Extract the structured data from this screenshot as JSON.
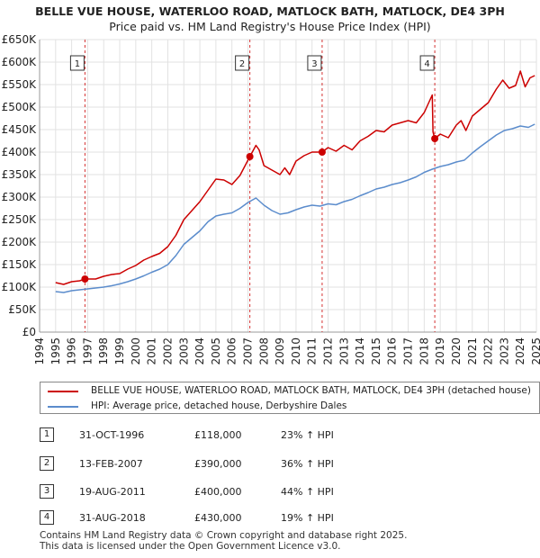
{
  "title": "BELLE VUE HOUSE, WATERLOO ROAD, MATLOCK BATH, MATLOCK, DE4 3PH",
  "subtitle": "Price paid vs. HM Land Registry's House Price Index (HPI)",
  "legend": {
    "property": "BELLE VUE HOUSE, WATERLOO ROAD, MATLOCK BATH, MATLOCK, DE4 3PH (detached house)",
    "hpi": "HPI: Average price, detached house, Derbyshire Dales"
  },
  "transactions": [
    {
      "num": "1",
      "date": "31-OCT-1996",
      "price": "£118,000",
      "hpi": "23% ↑ HPI"
    },
    {
      "num": "2",
      "date": "13-FEB-2007",
      "price": "£390,000",
      "hpi": "36% ↑ HPI"
    },
    {
      "num": "3",
      "date": "19-AUG-2011",
      "price": "£400,000",
      "hpi": "44% ↑ HPI"
    },
    {
      "num": "4",
      "date": "31-AUG-2018",
      "price": "£430,000",
      "hpi": "19% ↑ HPI"
    }
  ],
  "footer": {
    "line1": "Contains HM Land Registry data © Crown copyright and database right 2025.",
    "line2": "This data is licensed under the Open Government Licence v3.0."
  },
  "colors": {
    "property": "#cc0000",
    "hpi": "#5b8ccc",
    "grid": "#e2e2e2",
    "plot_bg": "#ffffff"
  },
  "chart_data": {
    "type": "line",
    "title": "BELLE VUE HOUSE, WATERLOO ROAD, MATLOCK BATH, MATLOCK, DE4 3PH",
    "subtitle": "Price paid vs. HM Land Registry's House Price Index (HPI)",
    "xlabel": "",
    "ylabel": "",
    "xlim": [
      1994,
      2025
    ],
    "ylim": [
      0,
      650000
    ],
    "x_ticks": [
      1994,
      1995,
      1996,
      1997,
      1998,
      1999,
      2000,
      2001,
      2002,
      2003,
      2004,
      2005,
      2006,
      2007,
      2008,
      2009,
      2010,
      2011,
      2012,
      2013,
      2014,
      2015,
      2016,
      2017,
      2018,
      2019,
      2020,
      2021,
      2022,
      2023,
      2024,
      2025
    ],
    "y_ticks": [
      0,
      50000,
      100000,
      150000,
      200000,
      250000,
      300000,
      350000,
      400000,
      450000,
      500000,
      550000,
      600000,
      650000
    ],
    "y_tick_labels": [
      "£0",
      "£50K",
      "£100K",
      "£150K",
      "£200K",
      "£250K",
      "£300K",
      "£350K",
      "£400K",
      "£450K",
      "£500K",
      "£550K",
      "£600K",
      "£650K"
    ],
    "grid": true,
    "legend_position": "below",
    "series": [
      {
        "name": "BELLE VUE HOUSE, WATERLOO ROAD, MATLOCK BATH, MATLOCK, DE4 3PH (detached house)",
        "color": "#cc0000",
        "x": [
          1995.0,
          1995.5,
          1996.0,
          1996.5,
          1996.83,
          1997.5,
          1998.0,
          1998.5,
          1999.0,
          1999.5,
          2000.0,
          2000.5,
          2001.0,
          2001.5,
          2002.0,
          2002.5,
          2003.0,
          2003.5,
          2004.0,
          2004.5,
          2005.0,
          2005.5,
          2006.0,
          2006.5,
          2007.12,
          2007.5,
          2007.7,
          2008.0,
          2008.5,
          2009.0,
          2009.3,
          2009.6,
          2010.0,
          2010.5,
          2011.0,
          2011.63,
          2012.0,
          2012.5,
          2013.0,
          2013.5,
          2014.0,
          2014.5,
          2015.0,
          2015.5,
          2016.0,
          2016.5,
          2017.0,
          2017.5,
          2018.0,
          2018.5,
          2018.55,
          2018.66,
          2019.0,
          2019.5,
          2020.0,
          2020.3,
          2020.6,
          2021.0,
          2021.5,
          2022.0,
          2022.5,
          2022.9,
          2023.3,
          2023.7,
          2024.0,
          2024.3,
          2024.6,
          2024.9
        ],
        "y": [
          110000,
          106000,
          112000,
          114000,
          118000,
          118000,
          124000,
          128000,
          130000,
          140000,
          148000,
          160000,
          168000,
          175000,
          190000,
          215000,
          250000,
          270000,
          290000,
          315000,
          340000,
          338000,
          328000,
          348000,
          390000,
          415000,
          405000,
          370000,
          360000,
          350000,
          365000,
          350000,
          380000,
          392000,
          400000,
          400000,
          410000,
          402000,
          415000,
          405000,
          425000,
          435000,
          448000,
          445000,
          460000,
          465000,
          470000,
          465000,
          488000,
          527000,
          445000,
          430000,
          440000,
          432000,
          460000,
          470000,
          448000,
          480000,
          495000,
          510000,
          540000,
          560000,
          542000,
          548000,
          580000,
          545000,
          565000,
          570000
        ]
      },
      {
        "name": "HPI: Average price, detached house, Derbyshire Dales",
        "color": "#5b8ccc",
        "x": [
          1995.0,
          1995.5,
          1996.0,
          1996.5,
          1997.0,
          1997.5,
          1998.0,
          1998.5,
          1999.0,
          1999.5,
          2000.0,
          2000.5,
          2001.0,
          2001.5,
          2002.0,
          2002.5,
          2003.0,
          2003.5,
          2004.0,
          2004.5,
          2005.0,
          2005.5,
          2006.0,
          2006.5,
          2007.0,
          2007.5,
          2008.0,
          2008.5,
          2009.0,
          2009.5,
          2010.0,
          2010.5,
          2011.0,
          2011.5,
          2012.0,
          2012.5,
          2013.0,
          2013.5,
          2014.0,
          2014.5,
          2015.0,
          2015.5,
          2016.0,
          2016.5,
          2017.0,
          2017.5,
          2018.0,
          2018.5,
          2019.0,
          2019.5,
          2020.0,
          2020.5,
          2021.0,
          2021.5,
          2022.0,
          2022.5,
          2023.0,
          2023.5,
          2024.0,
          2024.5,
          2024.9
        ],
        "y": [
          90000,
          88000,
          92000,
          94000,
          96000,
          98000,
          100000,
          103000,
          107000,
          112000,
          118000,
          125000,
          133000,
          140000,
          150000,
          170000,
          195000,
          210000,
          225000,
          245000,
          258000,
          262000,
          265000,
          275000,
          288000,
          298000,
          282000,
          270000,
          262000,
          265000,
          272000,
          278000,
          282000,
          280000,
          285000,
          283000,
          290000,
          295000,
          303000,
          310000,
          318000,
          322000,
          328000,
          332000,
          338000,
          345000,
          355000,
          362000,
          368000,
          372000,
          378000,
          382000,
          398000,
          412000,
          425000,
          438000,
          448000,
          452000,
          458000,
          455000,
          462000
        ]
      }
    ],
    "annotations": [
      {
        "label": "1",
        "x": 1996.83,
        "y": 118000
      },
      {
        "label": "2",
        "x": 2007.12,
        "y": 390000
      },
      {
        "label": "3",
        "x": 2011.63,
        "y": 400000
      },
      {
        "label": "4",
        "x": 2018.66,
        "y": 430000
      }
    ]
  }
}
